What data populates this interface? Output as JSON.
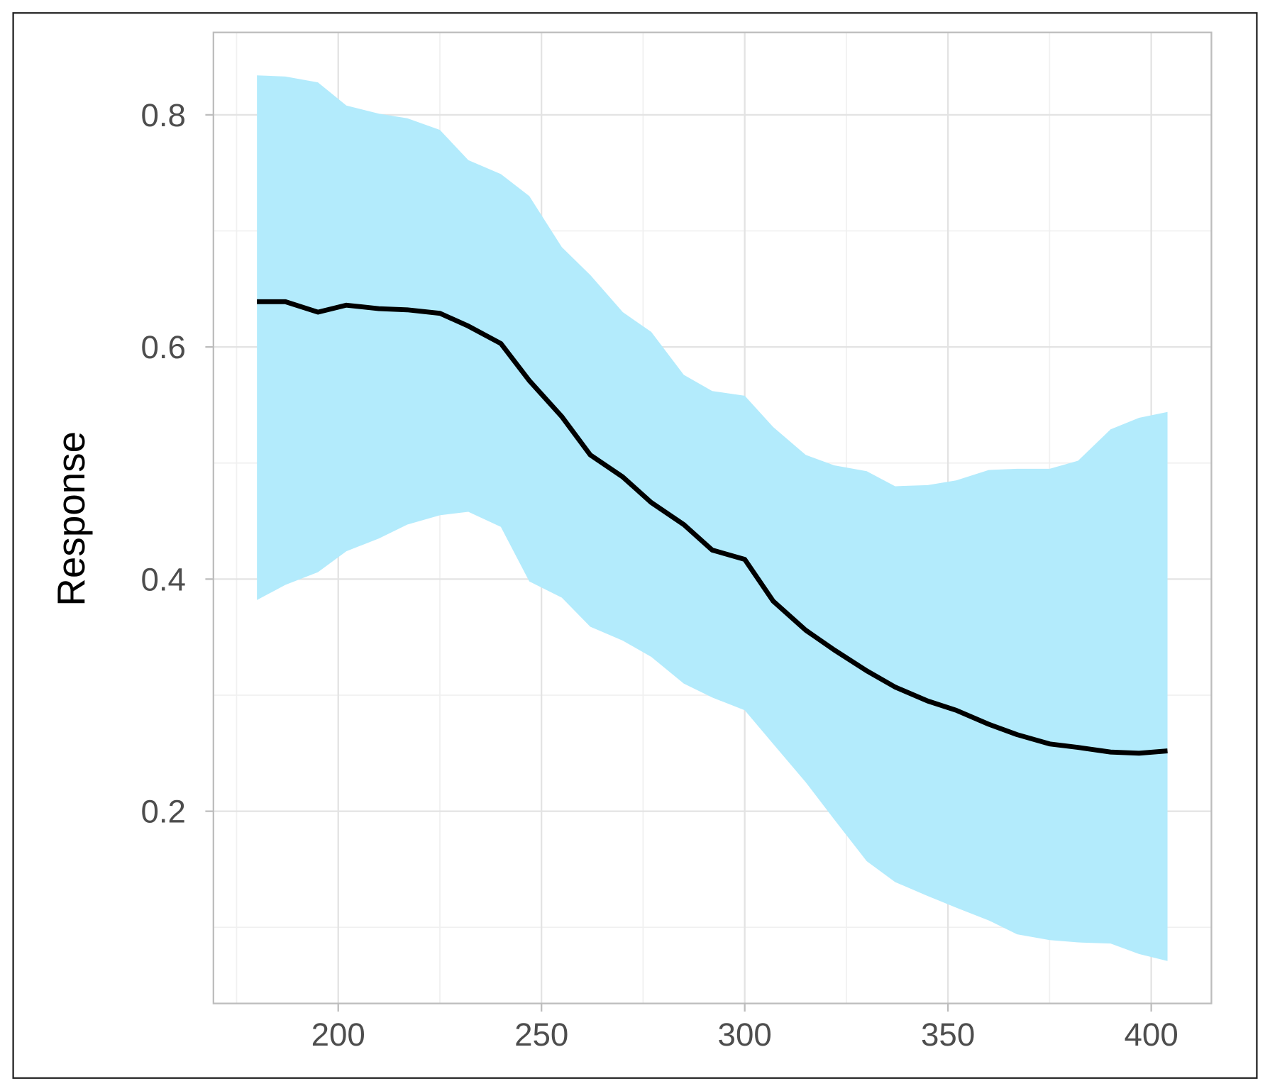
{
  "chart_data": {
    "type": "line_band",
    "ylabel": "Response",
    "x": [
      180,
      187,
      195,
      202,
      210,
      217,
      225,
      232,
      240,
      247,
      255,
      262,
      270,
      277,
      285,
      292,
      300,
      307,
      315,
      322,
      330,
      337,
      345,
      352,
      360,
      367,
      375,
      382,
      390,
      397,
      404
    ],
    "values": [
      0.639,
      0.639,
      0.63,
      0.636,
      0.633,
      0.632,
      0.629,
      0.618,
      0.603,
      0.571,
      0.54,
      0.507,
      0.488,
      0.466,
      0.447,
      0.425,
      0.417,
      0.381,
      0.356,
      0.339,
      0.321,
      0.307,
      0.295,
      0.287,
      0.275,
      0.266,
      0.258,
      0.255,
      0.251,
      0.25,
      0.252
    ],
    "upper": [
      0.834,
      0.833,
      0.828,
      0.808,
      0.801,
      0.797,
      0.787,
      0.761,
      0.749,
      0.73,
      0.686,
      0.662,
      0.63,
      0.613,
      0.576,
      0.562,
      0.558,
      0.531,
      0.507,
      0.498,
      0.493,
      0.48,
      0.481,
      0.485,
      0.494,
      0.495,
      0.495,
      0.502,
      0.529,
      0.539,
      0.544
    ],
    "lower": [
      0.382,
      0.395,
      0.406,
      0.424,
      0.435,
      0.447,
      0.455,
      0.458,
      0.445,
      0.398,
      0.384,
      0.359,
      0.347,
      0.333,
      0.31,
      0.298,
      0.287,
      0.258,
      0.225,
      0.193,
      0.157,
      0.139,
      0.127,
      0.117,
      0.106,
      0.094,
      0.089,
      0.087,
      0.086,
      0.077,
      0.071
    ],
    "color": "#000000",
    "band_color": "#b3ebfc",
    "xlim": [
      169.3,
      414.8
    ],
    "ylim": [
      0.0344,
      0.871
    ],
    "xticks": [
      200,
      250,
      300,
      350,
      400
    ],
    "yticks": [
      0.2,
      0.4,
      0.6,
      0.8
    ],
    "xminorticks": [
      175,
      225,
      275,
      325,
      375
    ],
    "yminorticks": [
      0.1,
      0.3,
      0.5,
      0.7
    ],
    "grid": true
  }
}
